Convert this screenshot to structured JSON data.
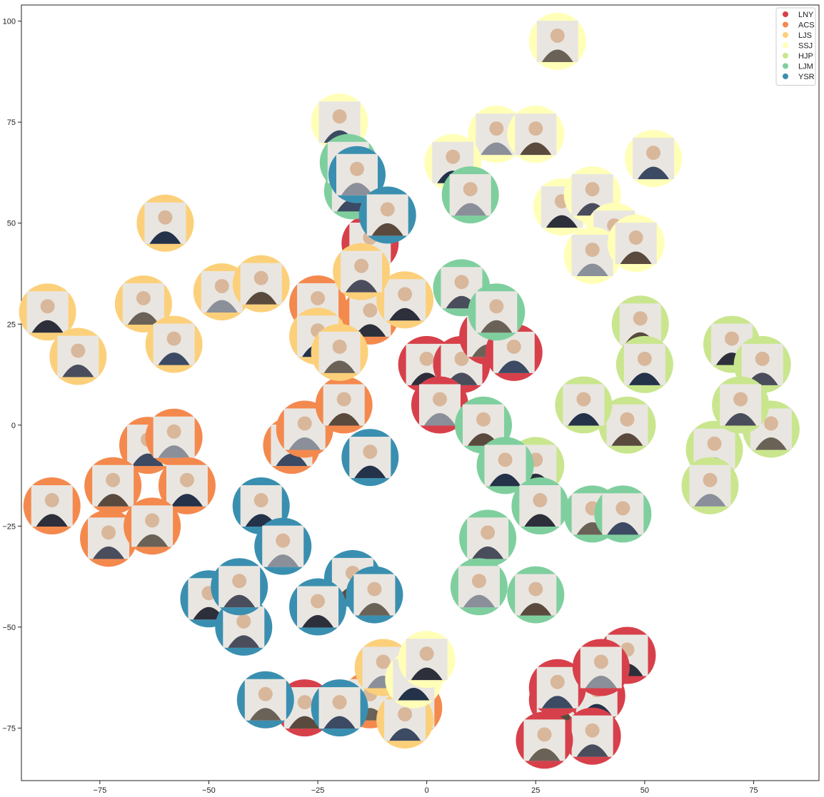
{
  "chart_data": {
    "type": "scatter",
    "title": "",
    "xlabel": "",
    "ylabel": "",
    "xlim": [
      -93,
      90
    ],
    "ylim": [
      -88,
      104
    ],
    "xticks": [
      -75,
      -50,
      -25,
      0,
      25,
      50,
      75
    ],
    "yticks": [
      100,
      75,
      50,
      25,
      0,
      -25,
      -50,
      -75
    ],
    "grid": false,
    "legend_position": "top-right",
    "marker_style": "circular marker filled with series color, overlaid with a rectangular photo thumbnail",
    "series": [
      {
        "name": "LNY",
        "color": "#d7404a",
        "points": [
          [
            0,
            15
          ],
          [
            8,
            15
          ],
          [
            14,
            22
          ],
          [
            20,
            18
          ],
          [
            3,
            5
          ],
          [
            30,
            -68
          ],
          [
            39,
            -67
          ],
          [
            46,
            -57
          ],
          [
            38,
            -77
          ],
          [
            27,
            -78
          ],
          [
            30,
            -65
          ],
          [
            40,
            -60
          ],
          [
            -28,
            -70
          ],
          [
            -13,
            45
          ]
        ]
      },
      {
        "name": "ACS",
        "color": "#f4894e",
        "points": [
          [
            -64,
            -5
          ],
          [
            -58,
            -3
          ],
          [
            -72,
            -15
          ],
          [
            -55,
            -15
          ],
          [
            -86,
            -20
          ],
          [
            -73,
            -28
          ],
          [
            -63,
            -25
          ],
          [
            -31,
            -5
          ],
          [
            -28,
            -1
          ],
          [
            -19,
            5
          ],
          [
            -25,
            30
          ],
          [
            -13,
            27
          ],
          [
            -3,
            -70
          ],
          [
            -13,
            -68
          ]
        ]
      },
      {
        "name": "LJS",
        "color": "#fcd07a",
        "points": [
          [
            -60,
            50
          ],
          [
            -87,
            28
          ],
          [
            -80,
            17
          ],
          [
            -65,
            30
          ],
          [
            -58,
            20
          ],
          [
            -47,
            33
          ],
          [
            -38,
            35
          ],
          [
            -25,
            22
          ],
          [
            -5,
            31
          ],
          [
            -15,
            38
          ],
          [
            -20,
            18
          ],
          [
            -5,
            -73
          ],
          [
            -10,
            -60
          ]
        ]
      },
      {
        "name": "SSJ",
        "color": "#ffffb8",
        "points": [
          [
            30,
            95
          ],
          [
            -20,
            75
          ],
          [
            16,
            72
          ],
          [
            25,
            72
          ],
          [
            6,
            65
          ],
          [
            31,
            54
          ],
          [
            38,
            57
          ],
          [
            43,
            48
          ],
          [
            52,
            66
          ],
          [
            38,
            42
          ],
          [
            48,
            45
          ],
          [
            -3,
            -63
          ],
          [
            0,
            -58
          ]
        ]
      },
      {
        "name": "HJP",
        "color": "#c9e68e",
        "points": [
          [
            49,
            25
          ],
          [
            50,
            15
          ],
          [
            70,
            20
          ],
          [
            77,
            15
          ],
          [
            79,
            -1
          ],
          [
            66,
            -6
          ],
          [
            65,
            -15
          ],
          [
            46,
            0
          ],
          [
            36,
            5
          ],
          [
            25,
            -10
          ],
          [
            72,
            5
          ]
        ]
      },
      {
        "name": "LJM",
        "color": "#7fcf9e",
        "points": [
          [
            8,
            34
          ],
          [
            16,
            28
          ],
          [
            -17,
            58
          ],
          [
            10,
            57
          ],
          [
            13,
            0
          ],
          [
            18,
            -10
          ],
          [
            26,
            -20
          ],
          [
            14,
            -28
          ],
          [
            38,
            -22
          ],
          [
            45,
            -22
          ],
          [
            12,
            -40
          ],
          [
            25,
            -42
          ],
          [
            -18,
            65
          ]
        ]
      },
      {
        "name": "YSR",
        "color": "#3a8fb0",
        "points": [
          [
            -16,
            62
          ],
          [
            -9,
            52
          ],
          [
            -38,
            -20
          ],
          [
            -50,
            -43
          ],
          [
            -42,
            -50
          ],
          [
            -37,
            -68
          ],
          [
            -20,
            -70
          ],
          [
            -33,
            -30
          ],
          [
            -17,
            -38
          ],
          [
            -13,
            -8
          ],
          [
            -25,
            -45
          ],
          [
            -43,
            -40
          ],
          [
            -12,
            -42
          ]
        ]
      }
    ]
  }
}
